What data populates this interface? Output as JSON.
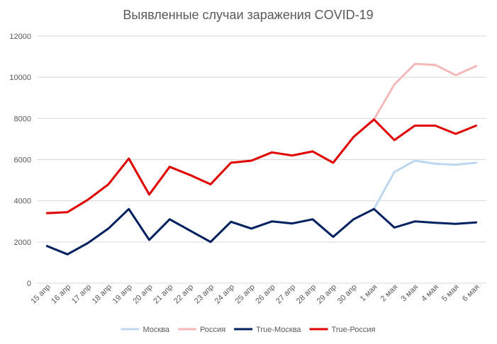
{
  "chart_data": {
    "type": "line",
    "title": "Выявленные случаи заражения COVID-19",
    "xlabel": "",
    "ylabel": "",
    "ylim": [
      0,
      12000
    ],
    "yticks": [
      "0",
      "2000",
      "4000",
      "6000",
      "8000",
      "10000",
      "12000"
    ],
    "grid": true,
    "legend_position": "bottom",
    "categories": [
      "15 апр",
      "16 апр",
      "17 апр",
      "18 апр",
      "19 апр",
      "20 апр",
      "21 апр",
      "22 апр",
      "23 апр",
      "24 апр",
      "25 апр",
      "26 апр",
      "27 апр",
      "28 апр",
      "29 апр",
      "30 апр",
      "1 мая",
      "2 мая",
      "3 мая",
      "4 мая",
      "5 мая",
      "6 мая"
    ],
    "series": [
      {
        "name": "Москва",
        "color": "#bdd7ee",
        "values": [
          1800,
          1400,
          1950,
          2650,
          3600,
          2100,
          3100,
          2550,
          2000,
          2980,
          2650,
          3000,
          2900,
          3100,
          2250,
          3100,
          3600,
          5400,
          5950,
          5800,
          5750,
          5850
        ]
      },
      {
        "name": "Россия",
        "color": "#f4b8b8",
        "values": [
          3400,
          3450,
          4050,
          4800,
          6050,
          4300,
          5650,
          5250,
          4800,
          5850,
          5950,
          6350,
          6200,
          6400,
          5850,
          7100,
          7950,
          9650,
          10650,
          10600,
          10100,
          10550
        ]
      },
      {
        "name": "True-Москва",
        "color": "#002060",
        "values": [
          1800,
          1400,
          1950,
          2650,
          3600,
          2100,
          3100,
          2550,
          2000,
          2980,
          2650,
          3000,
          2900,
          3100,
          2250,
          3100,
          3600,
          2700,
          3000,
          2930,
          2880,
          2950
        ]
      },
      {
        "name": "True-Россия",
        "color": "#e00000",
        "values": [
          3400,
          3450,
          4050,
          4800,
          6050,
          4300,
          5650,
          5250,
          4800,
          5850,
          5950,
          6350,
          6200,
          6400,
          5850,
          7100,
          7950,
          6950,
          7650,
          7650,
          7250,
          7650
        ]
      }
    ]
  }
}
